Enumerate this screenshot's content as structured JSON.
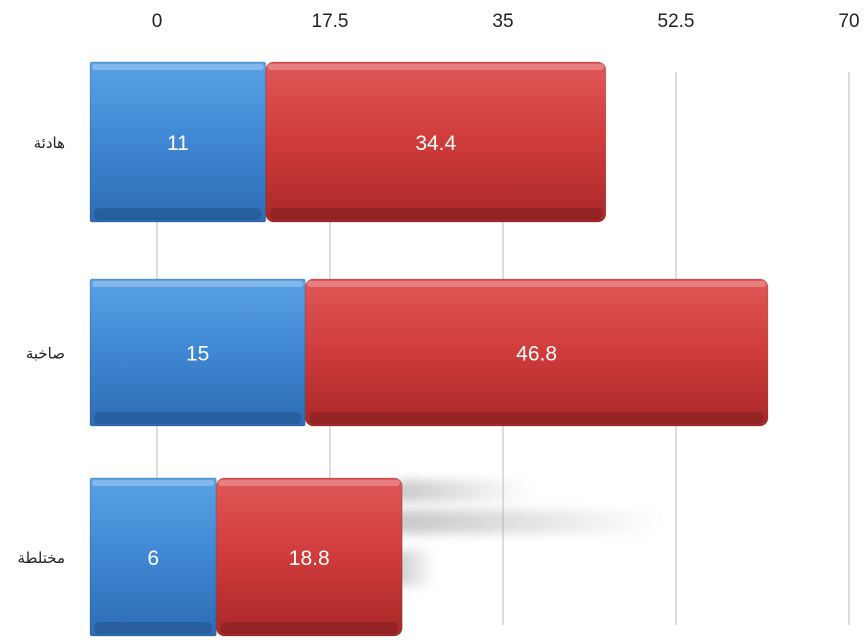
{
  "chart_data": {
    "type": "bar",
    "orientation": "horizontal",
    "stacked": true,
    "categories": [
      "هادئة",
      "صاخبة",
      "مختلطة"
    ],
    "series": [
      {
        "values": [
          11,
          15,
          6
        ],
        "color": "#3f86d3"
      },
      {
        "values": [
          34.4,
          46.8,
          18.8
        ],
        "color": "#cf3b3b"
      }
    ],
    "xticks": [
      "0",
      "17.5",
      "35",
      "52.5",
      "70"
    ],
    "xlim": [
      0,
      70
    ],
    "grid": true,
    "legend": "none"
  }
}
